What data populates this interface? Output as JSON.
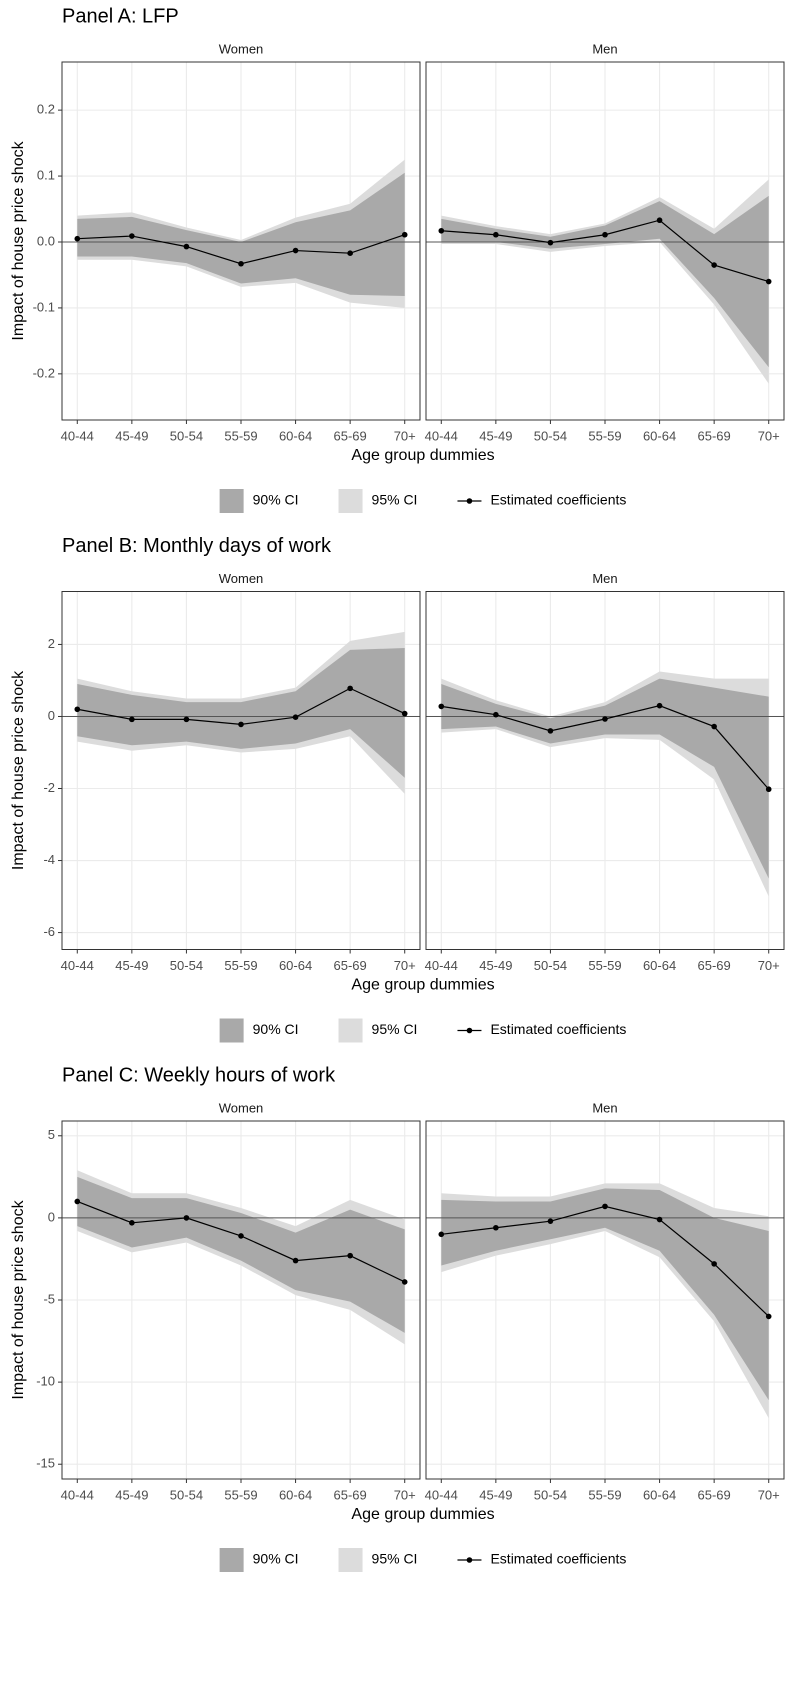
{
  "chart_data": [
    {
      "type": "line",
      "title": "Panel A: LFP",
      "y_label": "Impact of house price shock",
      "x_label": "Age group dummies",
      "facets": [
        "Women",
        "Men"
      ],
      "categories": [
        "40-44",
        "45-49",
        "50-54",
        "55-59",
        "60-64",
        "65-69",
        "70+"
      ],
      "ylim": [
        -0.27,
        0.273
      ],
      "yticks": [
        -0.2,
        -0.1,
        {
          "value": 0,
          "label": "0.0"
        },
        0.1,
        0.2
      ],
      "grid": true,
      "reference_line": 0,
      "series": [
        {
          "name": "90% CI",
          "color": "#a9a9a9",
          "upper": [
            [
              0.035,
              0.038,
              0.018,
              0.0,
              0.03,
              0.048,
              0.105
            ],
            [
              0.035,
              0.02,
              0.008,
              0.025,
              0.062,
              0.012,
              0.07
            ]
          ],
          "lower": [
            [
              -0.022,
              -0.022,
              -0.032,
              -0.063,
              -0.055,
              -0.08,
              -0.082
            ],
            [
              0.0,
              0.0,
              -0.01,
              -0.003,
              0.005,
              -0.085,
              -0.19
            ]
          ]
        },
        {
          "name": "95% CI",
          "color": "#dcdcdc",
          "upper": [
            [
              0.04,
              0.045,
              0.022,
              0.003,
              0.037,
              0.058,
              0.125
            ],
            [
              0.04,
              0.024,
              0.012,
              0.028,
              0.068,
              0.02,
              0.095
            ]
          ],
          "lower": [
            [
              -0.027,
              -0.027,
              -0.037,
              -0.068,
              -0.062,
              -0.092,
              -0.1
            ],
            [
              -0.003,
              -0.003,
              -0.015,
              -0.006,
              0.0,
              -0.095,
              -0.215
            ]
          ]
        },
        {
          "name": "Estimated coefficients",
          "color": "#000000",
          "values": [
            [
              0.005,
              0.009,
              -0.007,
              -0.033,
              -0.013,
              -0.017,
              0.011
            ],
            [
              0.017,
              0.011,
              -0.001,
              0.011,
              0.033,
              -0.035,
              -0.06
            ]
          ]
        }
      ]
    },
    {
      "type": "line",
      "title": "Panel B: Monthly days of work",
      "y_label": "Impact of house price shock",
      "x_label": "Age group dummies",
      "facets": [
        "Women",
        "Men"
      ],
      "categories": [
        "40-44",
        "45-49",
        "50-54",
        "55-59",
        "60-64",
        "65-69",
        "70+"
      ],
      "ylim": [
        -6.47,
        3.47
      ],
      "yticks": [
        -6,
        -4,
        -2,
        0,
        2
      ],
      "grid": true,
      "reference_line": 0,
      "series": [
        {
          "name": "90% CI",
          "color": "#a9a9a9",
          "upper": [
            [
              0.9,
              0.6,
              0.4,
              0.4,
              0.7,
              1.85,
              1.9
            ],
            [
              0.9,
              0.35,
              -0.05,
              0.3,
              1.05,
              0.8,
              0.55
            ]
          ],
          "lower": [
            [
              -0.55,
              -0.8,
              -0.7,
              -0.9,
              -0.75,
              -0.35,
              -1.7
            ],
            [
              -0.35,
              -0.28,
              -0.75,
              -0.5,
              -0.5,
              -1.4,
              -4.5
            ]
          ]
        },
        {
          "name": "95% CI",
          "color": "#dcdcdc",
          "upper": [
            [
              1.05,
              0.7,
              0.5,
              0.5,
              0.8,
              2.1,
              2.35
            ],
            [
              1.05,
              0.45,
              0.0,
              0.4,
              1.25,
              1.05,
              1.05
            ]
          ],
          "lower": [
            [
              -0.7,
              -0.95,
              -0.8,
              -1.0,
              -0.9,
              -0.55,
              -2.15
            ],
            [
              -0.45,
              -0.35,
              -0.85,
              -0.6,
              -0.65,
              -1.75,
              -5.0
            ]
          ]
        },
        {
          "name": "Estimated coefficients",
          "color": "#000000",
          "values": [
            [
              0.2,
              -0.08,
              -0.08,
              -0.22,
              -0.02,
              0.78,
              0.08
            ],
            [
              0.28,
              0.05,
              -0.4,
              -0.07,
              0.3,
              -0.28,
              -2.02
            ]
          ]
        }
      ]
    },
    {
      "type": "line",
      "title": "Panel C: Weekly hours of work",
      "y_label": "Impact of house price shock",
      "x_label": "Age group dummies",
      "facets": [
        "Women",
        "Men"
      ],
      "categories": [
        "40-44",
        "45-49",
        "50-54",
        "55-59",
        "60-64",
        "65-69",
        "70+"
      ],
      "ylim": [
        -15.9,
        5.9
      ],
      "yticks": [
        -15,
        -10,
        -5,
        0,
        5
      ],
      "grid": true,
      "reference_line": 0,
      "series": [
        {
          "name": "90% CI",
          "color": "#a9a9a9",
          "upper": [
            [
              2.5,
              1.2,
              1.2,
              0.3,
              -0.9,
              0.5,
              -0.7
            ],
            [
              1.1,
              1.0,
              1.0,
              1.8,
              1.7,
              0.0,
              -0.8
            ]
          ],
          "lower": [
            [
              -0.5,
              -1.8,
              -1.2,
              -2.6,
              -4.4,
              -5.1,
              -7.0
            ],
            [
              -2.9,
              -2.0,
              -1.3,
              -0.6,
              -2.0,
              -5.9,
              -11.1
            ]
          ]
        },
        {
          "name": "95% CI",
          "color": "#dcdcdc",
          "upper": [
            [
              2.9,
              1.5,
              1.5,
              0.6,
              -0.5,
              1.1,
              -0.1
            ],
            [
              1.5,
              1.3,
              1.3,
              2.1,
              2.1,
              0.6,
              0.1
            ]
          ],
          "lower": [
            [
              -0.8,
              -2.1,
              -1.5,
              -2.9,
              -4.7,
              -5.6,
              -7.7
            ],
            [
              -3.3,
              -2.3,
              -1.6,
              -0.8,
              -2.4,
              -6.3,
              -12.2
            ]
          ]
        },
        {
          "name": "Estimated coefficients",
          "color": "#000000",
          "values": [
            [
              1.0,
              -0.3,
              0.0,
              -1.1,
              -2.6,
              -2.3,
              -3.9
            ],
            [
              -1.0,
              -0.6,
              -0.2,
              0.7,
              -0.1,
              -2.8,
              -6.0
            ]
          ]
        }
      ]
    }
  ]
}
